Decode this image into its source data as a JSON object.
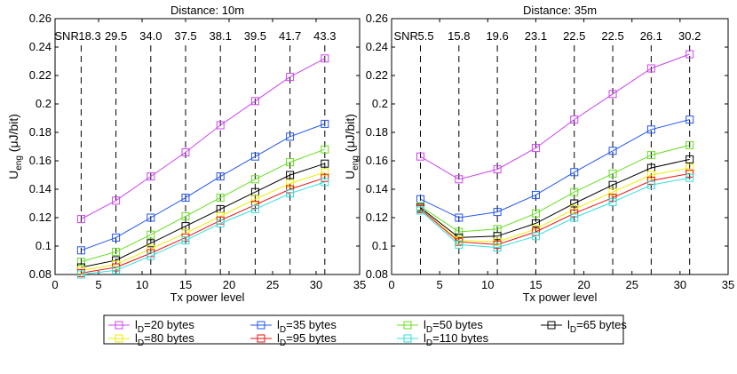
{
  "chart_data": [
    {
      "type": "line",
      "title": "Distance: 10m",
      "xlabel": "Tx power level",
      "ylabel_main": "U",
      "ylabel_sub": "eng",
      "ylabel_unit": " (μJ/bit)",
      "xlim": [
        0,
        35
      ],
      "ylim": [
        0.08,
        0.26
      ],
      "xticks": [
        0,
        5,
        10,
        15,
        20,
        25,
        30,
        35
      ],
      "xtick_labels": [
        "0",
        "5",
        "10",
        "15",
        "20",
        "25",
        "30",
        "35"
      ],
      "yticks": [
        0.08,
        0.1,
        0.12,
        0.14,
        0.16,
        0.18,
        0.2,
        0.22,
        0.24,
        0.26
      ],
      "ytick_labels": [
        "0.08",
        "0.1",
        "0.12",
        "0.14",
        "0.16",
        "0.18",
        "0.2",
        "0.22",
        "0.24",
        "0.26"
      ],
      "x": [
        3,
        7,
        11,
        15,
        19,
        23,
        27,
        31
      ],
      "snr_prefix": "SNR",
      "snr_labels": [
        "18.3",
        "29.5",
        "34.0",
        "37.5",
        "38.1",
        "39.5",
        "41.7",
        "43.3"
      ],
      "series": [
        {
          "name": "l_D=20 bytes",
          "values": [
            0.119,
            0.132,
            0.149,
            0.166,
            0.185,
            0.202,
            0.219,
            0.232
          ]
        },
        {
          "name": "l_D=35 bytes",
          "values": [
            0.097,
            0.106,
            0.12,
            0.134,
            0.149,
            0.163,
            0.177,
            0.186
          ]
        },
        {
          "name": "l_D=50 bytes",
          "values": [
            0.089,
            0.096,
            0.108,
            0.121,
            0.134,
            0.147,
            0.159,
            0.168
          ]
        },
        {
          "name": "l_D=65 bytes",
          "values": [
            0.085,
            0.09,
            0.102,
            0.114,
            0.126,
            0.138,
            0.15,
            0.158
          ]
        },
        {
          "name": "l_D=80 bytes",
          "values": [
            0.083,
            0.087,
            0.098,
            0.109,
            0.121,
            0.133,
            0.144,
            0.152
          ]
        },
        {
          "name": "l_D=95 bytes",
          "values": [
            0.081,
            0.085,
            0.095,
            0.106,
            0.118,
            0.129,
            0.14,
            0.148
          ]
        },
        {
          "name": "l_D=110 bytes",
          "values": [
            0.08,
            0.083,
            0.093,
            0.104,
            0.116,
            0.126,
            0.137,
            0.145
          ]
        }
      ]
    },
    {
      "type": "line",
      "title": "Distance: 35m",
      "xlabel": "Tx power level",
      "ylabel_main": "U",
      "ylabel_sub": "eng",
      "ylabel_unit": " (μJ/bit)",
      "xlim": [
        0,
        35
      ],
      "ylim": [
        0.08,
        0.26
      ],
      "xticks": [
        0,
        5,
        10,
        15,
        20,
        25,
        30,
        35
      ],
      "xtick_labels": [
        "0",
        "5",
        "10",
        "15",
        "20",
        "25",
        "30",
        "35"
      ],
      "yticks": [
        0.08,
        0.1,
        0.12,
        0.14,
        0.16,
        0.18,
        0.2,
        0.22,
        0.24,
        0.26
      ],
      "ytick_labels": [
        "0.08",
        "0.1",
        "0.12",
        "0.14",
        "0.16",
        "0.18",
        "0.2",
        "0.22",
        "0.24",
        "0.26"
      ],
      "x": [
        3,
        7,
        11,
        15,
        19,
        23,
        27,
        31
      ],
      "snr_prefix": "SNR",
      "snr_labels": [
        "5.5",
        "15.8",
        "19.6",
        "23.1",
        "22.5",
        "22.5",
        "26.1",
        "30.2"
      ],
      "series": [
        {
          "name": "l_D=20 bytes",
          "values": [
            0.163,
            0.147,
            0.154,
            0.169,
            0.189,
            0.207,
            0.225,
            0.235
          ]
        },
        {
          "name": "l_D=35 bytes",
          "values": [
            0.133,
            0.12,
            0.124,
            0.136,
            0.152,
            0.167,
            0.182,
            0.189
          ]
        },
        {
          "name": "l_D=50 bytes",
          "values": [
            0.128,
            0.11,
            0.112,
            0.123,
            0.138,
            0.151,
            0.164,
            0.171
          ]
        },
        {
          "name": "l_D=65 bytes",
          "values": [
            0.127,
            0.106,
            0.107,
            0.116,
            0.13,
            0.143,
            0.155,
            0.161
          ]
        },
        {
          "name": "l_D=80 bytes",
          "values": [
            0.126,
            0.104,
            0.103,
            0.112,
            0.126,
            0.138,
            0.15,
            0.155
          ]
        },
        {
          "name": "l_D=95 bytes",
          "values": [
            0.126,
            0.103,
            0.101,
            0.11,
            0.123,
            0.134,
            0.146,
            0.151
          ]
        },
        {
          "name": "l_D=110 bytes",
          "values": [
            0.125,
            0.101,
            0.099,
            0.107,
            0.12,
            0.131,
            0.143,
            0.148
          ]
        }
      ]
    }
  ],
  "legend": {
    "items": [
      {
        "symbol": "l",
        "sub": "D",
        "text": "=20 bytes",
        "color": "#cc44ee"
      },
      {
        "symbol": "l",
        "sub": "D",
        "text": "=35 bytes",
        "color": "#2255ee"
      },
      {
        "symbol": "l",
        "sub": "D",
        "text": "=50 bytes",
        "color": "#66dd22"
      },
      {
        "symbol": "l",
        "sub": "D",
        "text": "=65 bytes",
        "color": "#000000"
      },
      {
        "symbol": "l",
        "sub": "D",
        "text": "=80 bytes",
        "color": "#eeee00"
      },
      {
        "symbol": "l",
        "sub": "D",
        "text": "=95 bytes",
        "color": "#ee1111"
      },
      {
        "symbol": "l",
        "sub": "D",
        "text": "=110 bytes",
        "color": "#33dddd"
      }
    ]
  }
}
